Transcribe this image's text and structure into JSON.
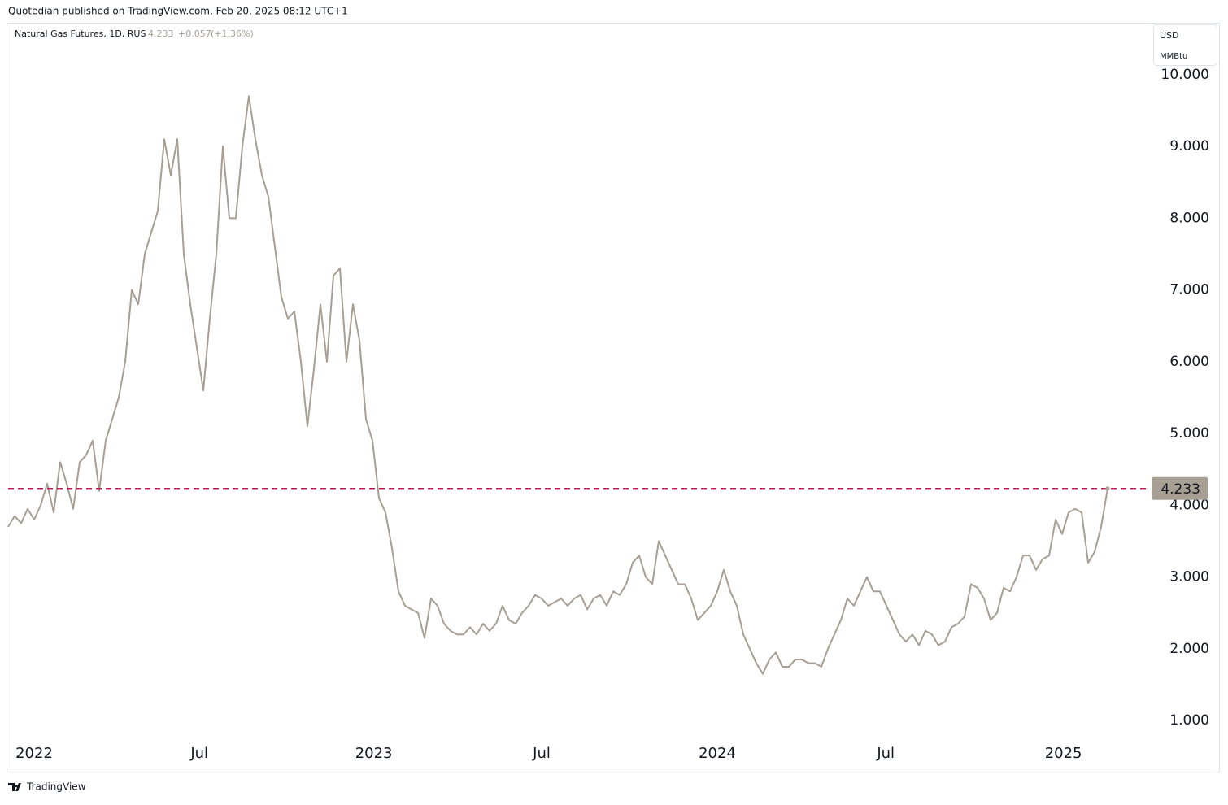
{
  "header": "Quotedian published on TradingView.com, Feb 20, 2025 08:12 UTC+1",
  "footer": "TradingView",
  "chart_data": {
    "type": "line",
    "legend": {
      "name": "Natural Gas Futures, 1D, RUS",
      "change": "+0.057",
      "change_pct": "(+1.36%)"
    },
    "currency": "USD",
    "unit": "MMBtu",
    "series": [
      {
        "name": "Natural Gas Futures",
        "color": "#a89f94",
        "values": [
          3.7,
          3.85,
          3.75,
          3.95,
          3.8,
          4.0,
          4.3,
          3.9,
          4.6,
          4.3,
          3.95,
          4.6,
          4.7,
          4.9,
          4.2,
          4.9,
          5.2,
          5.5,
          6.0,
          7.0,
          6.8,
          7.5,
          7.8,
          8.1,
          9.1,
          8.6,
          9.1,
          7.5,
          6.8,
          6.2,
          5.6,
          6.6,
          7.5,
          9.0,
          8.0,
          8.0,
          9.0,
          9.7,
          9.1,
          8.6,
          8.3,
          7.6,
          6.9,
          6.6,
          6.7,
          6.0,
          5.1,
          5.9,
          6.8,
          6.0,
          7.2,
          7.3,
          6.0,
          6.8,
          6.3,
          5.2,
          4.9,
          4.1,
          3.9,
          3.4,
          2.8,
          2.6,
          2.55,
          2.5,
          2.15,
          2.7,
          2.6,
          2.35,
          2.25,
          2.2,
          2.2,
          2.3,
          2.2,
          2.35,
          2.25,
          2.35,
          2.6,
          2.4,
          2.35,
          2.5,
          2.6,
          2.75,
          2.7,
          2.6,
          2.65,
          2.7,
          2.6,
          2.7,
          2.75,
          2.55,
          2.7,
          2.75,
          2.6,
          2.8,
          2.75,
          2.9,
          3.2,
          3.3,
          3.0,
          2.9,
          3.5,
          3.3,
          3.1,
          2.9,
          2.9,
          2.7,
          2.4,
          2.5,
          2.6,
          2.8,
          3.1,
          2.8,
          2.6,
          2.2,
          2.0,
          1.8,
          1.65,
          1.85,
          1.95,
          1.75,
          1.75,
          1.85,
          1.85,
          1.8,
          1.8,
          1.75,
          2.0,
          2.2,
          2.4,
          2.7,
          2.6,
          2.8,
          3.0,
          2.8,
          2.8,
          2.6,
          2.4,
          2.2,
          2.1,
          2.2,
          2.05,
          2.25,
          2.2,
          2.05,
          2.1,
          2.3,
          2.35,
          2.45,
          2.9,
          2.85,
          2.7,
          2.4,
          2.5,
          2.85,
          2.8,
          3.0,
          3.3,
          3.3,
          3.1,
          3.25,
          3.3,
          3.8,
          3.6,
          3.9,
          3.95,
          3.9,
          3.2,
          3.35,
          3.7,
          4.233
        ]
      }
    ],
    "price_line_color": "#c2185b",
    "xlim": [
      0,
      175
    ],
    "xticks": [
      {
        "value": 4,
        "label": "2022"
      },
      {
        "value": 29.4,
        "label": "Jul"
      },
      {
        "value": 56.2,
        "label": "2023"
      },
      {
        "value": 82,
        "label": "Jul"
      },
      {
        "value": 109,
        "label": "2024"
      },
      {
        "value": 134.9,
        "label": "Jul"
      },
      {
        "value": 162.2,
        "label": "2025"
      }
    ],
    "ylim": [
      0.73,
      10.7
    ],
    "yticks": [
      {
        "value": 1,
        "label": "1.000"
      },
      {
        "value": 2,
        "label": "2.000"
      },
      {
        "value": 3,
        "label": "3.000"
      },
      {
        "value": 4,
        "label": "4.000"
      },
      {
        "value": 5,
        "label": "5.000"
      },
      {
        "value": 6,
        "label": "6.000"
      },
      {
        "value": 7,
        "label": "7.000"
      },
      {
        "value": 8,
        "label": "8.000"
      },
      {
        "value": 9,
        "label": "9.000"
      },
      {
        "value": 10,
        "label": "10.000"
      }
    ]
  }
}
